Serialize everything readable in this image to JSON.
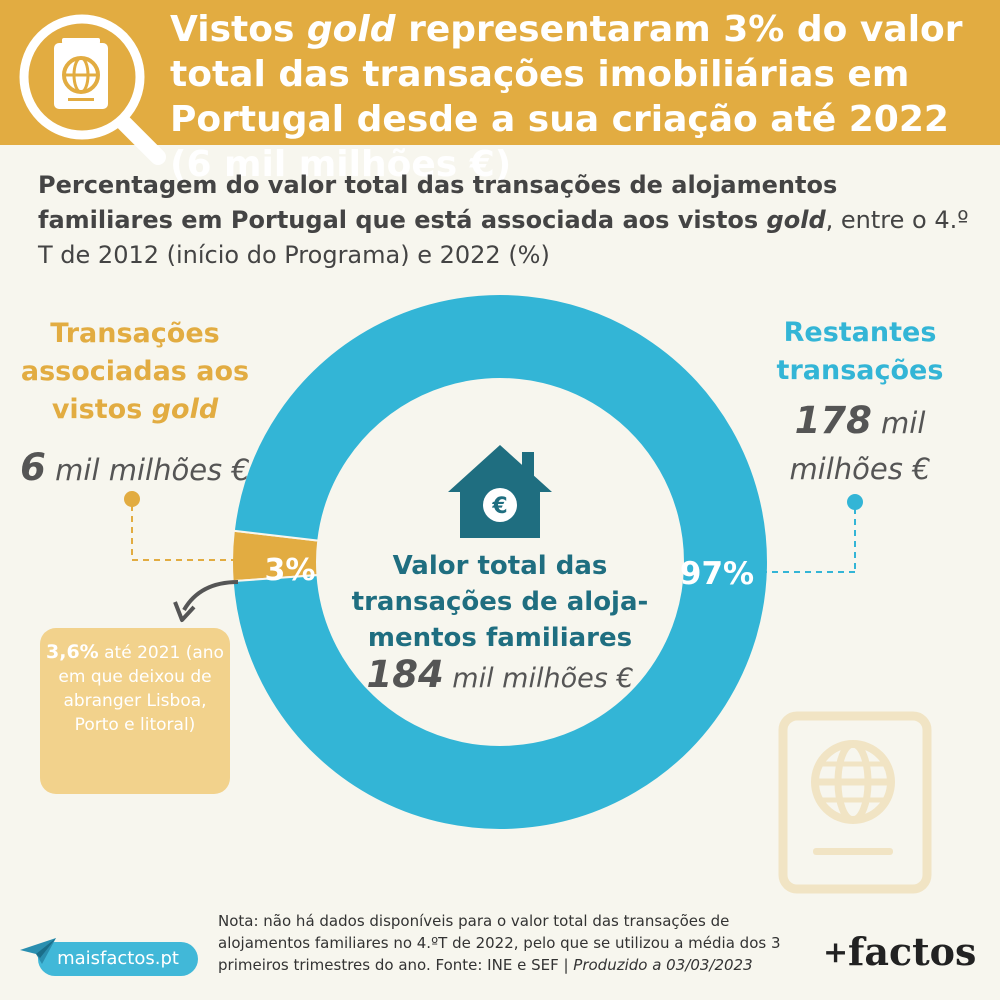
{
  "banner": {
    "title_pre": "Vistos ",
    "title_em": "gold",
    "title_post": " representaram 3% do valor total das transações imobiliárias em Portugal desde a sua criação até 2022 (6 mil milhões €)"
  },
  "subtitle": {
    "bold_a": "Percentagem do valor total das transações de alojamentos familiares em Portugal que está associada aos vistos ",
    "bold_em": "gold",
    "rest": ", entre o 4.º T de 2012 (início do Programa) e 2022 (%)"
  },
  "left": {
    "label_a": "Transações associadas aos vistos ",
    "label_em": "gold",
    "value_big": "6",
    "value_unit": " mil milhões €"
  },
  "right": {
    "label": "Restantes transações",
    "value_big": "178",
    "value_unit": " mil milhões €"
  },
  "center": {
    "label": "Valor total das transações de aloja-mentos familiares",
    "value_big": "184",
    "value_unit": " mil milhões €"
  },
  "note_box": {
    "bold": "3,6%",
    "rest": " até 2021 (ano em que deixou de abranger Lisboa, Porto e litoral)"
  },
  "footnote": {
    "text": "Nota: não há dados disponíveis para o valor total das transações de alojamentos familiares no 4.ºT de 2022, pelo que se utilizou a média dos 3 primeiros trimestres do ano. Fonte: INE e SEF | ",
    "em": "Produzido a 03/03/2023"
  },
  "brand": {
    "site": "maisfactos.pt",
    "logo_plus": "+",
    "logo_text": "factos"
  },
  "icons": {
    "magnifier": "magnifier-passport-icon",
    "house": "house-euro-icon",
    "passport": "passport-icon",
    "arrow": "curved-arrow-icon",
    "plane": "paper-plane-icon"
  },
  "colors": {
    "gold": "#e2ac41",
    "blue": "#33b5d6",
    "teal": "#1f6e80",
    "background": "#f7f6ee"
  },
  "chart_data": {
    "type": "pie",
    "categories": [
      "Transações associadas aos vistos gold",
      "Restantes transações"
    ],
    "values": [
      3,
      97
    ],
    "labels": [
      "3%",
      "97%"
    ],
    "amounts": [
      6,
      178
    ],
    "total": 184,
    "colors": [
      "#e2ac41",
      "#33b5d6"
    ]
  }
}
